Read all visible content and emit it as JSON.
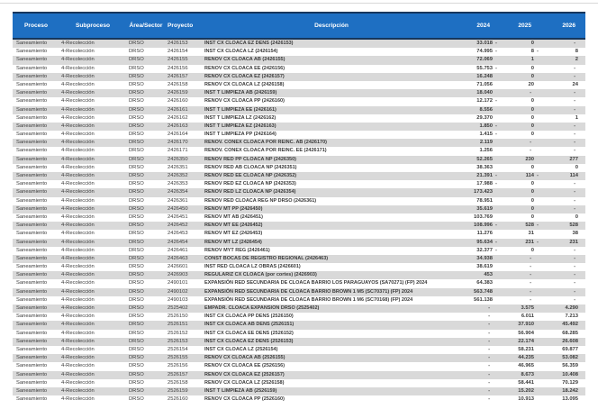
{
  "colors": {
    "header_bg": "#1E6FC2",
    "header_text": "#FFFFFF",
    "row_alt": "#D9D9D9",
    "border_dark": "#16365C",
    "body_text": "#3A3A3A"
  },
  "table": {
    "columns": [
      "Proceso",
      "Subproceso",
      "Área/Sector",
      "Proyecto",
      "Descripción",
      "2024",
      "2025",
      "2026"
    ],
    "repeated": {
      "proceso": "Saneamiento",
      "subproceso": "4-Recolección",
      "area_sector": "DRSO"
    },
    "rows": [
      [
        "2426153",
        "INST CX CLOACA EZ DENS (2426153)",
        "33.018",
        "-",
        "0",
        "",
        "-",
        ""
      ],
      [
        "2426154",
        "INST CX CLOACA LZ (2426154)",
        "74.995",
        "-",
        "8",
        "-",
        "8",
        ""
      ],
      [
        "2426155",
        "RENOV CX CLOACA AB (2426155)",
        "72.069",
        "",
        "1",
        "",
        "2",
        ""
      ],
      [
        "2426156",
        "RENOV CX CLOACA EE (2426156)",
        "55.753",
        "-",
        "0",
        "",
        "-",
        ""
      ],
      [
        "2426157",
        "RENOV CX CLOACA EZ (2426157)",
        "16.248",
        "",
        "0",
        "",
        "-",
        ""
      ],
      [
        "2426158",
        "RENOV CX CLOACA LZ (2426158)",
        "71.056",
        "",
        "20",
        "",
        "24",
        ""
      ],
      [
        "2426159",
        "INST T LIMPIEZA AB (2426159)",
        "18.040",
        "",
        "-",
        "",
        "-",
        ""
      ],
      [
        "2426160",
        "RENOV CX CLOACA PP (2426160)",
        "12.172",
        "-",
        "0",
        "",
        "-",
        ""
      ],
      [
        "2426161",
        "INST T LIMPIEZA EE (2426161)",
        "8.556",
        "",
        "0",
        "",
        "-",
        ""
      ],
      [
        "2426162",
        "INST T LIMPIEZA LZ (2426162)",
        "29.370",
        "",
        "0",
        "",
        "1",
        ""
      ],
      [
        "2426163",
        "INST T LIMPIEZA EZ (2426163)",
        "1.850",
        "-",
        "0",
        "",
        "-",
        ""
      ],
      [
        "2426164",
        "INST T LIMPIEZA PP (2426164)",
        "1.415",
        "-",
        "0",
        "",
        "-",
        ""
      ],
      [
        "2426170",
        "RENOV. CONEX CLOACA POR REINC. AB (2426170)",
        "2.119",
        "",
        "-",
        "",
        "-",
        ""
      ],
      [
        "2426171",
        "RENOV. CONEX CLOACA POR REINC. EE (2426171)",
        "1.256",
        "",
        "-",
        "",
        "-",
        ""
      ],
      [
        "2426350",
        "RENOV RED PP CLOACA NP (2426350)",
        "52.265",
        "",
        "230",
        "",
        "277",
        ""
      ],
      [
        "2426351",
        "RENOV RED AB CLOACA NP (2426351)",
        "38.363",
        "",
        "0",
        "",
        "0",
        ""
      ],
      [
        "2426352",
        "RENOV RED EE CLOACA NP (2426352)",
        "21.391",
        "-",
        "114",
        "-",
        "114",
        ""
      ],
      [
        "2426353",
        "RENOV RED EZ CLOACA NP (2426353)",
        "17.988",
        "-",
        "0",
        "",
        "-",
        ""
      ],
      [
        "2426354",
        "RENOV RED LZ CLOACA NP (2426354)",
        "173.423",
        "",
        "0",
        "",
        "-",
        ""
      ],
      [
        "2426361",
        "RENOV RED CLOACA REG NP DRSO (2426361)",
        "78.951",
        "",
        "0",
        "",
        "-",
        ""
      ],
      [
        "2426450",
        "RENOV MT PP (2426450)",
        "35.619",
        "",
        "0",
        "",
        "-",
        ""
      ],
      [
        "2426451",
        "RENOV MT AB (2426451)",
        "103.769",
        "",
        "0",
        "",
        "0",
        ""
      ],
      [
        "2426452",
        "RENOV MT EE (2426452)",
        "108.996",
        "-",
        "528",
        "-",
        "528",
        ""
      ],
      [
        "2426453",
        "RENOV MT EZ (2426453)",
        "11.276",
        "",
        "31",
        "",
        "38",
        ""
      ],
      [
        "2426454",
        "RENOV MT LZ (2426454)",
        "95.634",
        "-",
        "231",
        "-",
        "231",
        ""
      ],
      [
        "2426461",
        "RENOV MYT REG (2426461)",
        "32.377",
        "-",
        "0",
        "",
        "-",
        ""
      ],
      [
        "2426463",
        "CONST BOCAS DE REGISTRO REGIONAL (2426463)",
        "34.938",
        "",
        "-",
        "",
        "-",
        ""
      ],
      [
        "2426601",
        "INST RED CLOACA LZ OBRAS (2426601)",
        "38.619",
        "",
        "-",
        "",
        "-",
        ""
      ],
      [
        "2426903",
        "REGULARIZ CX CLOACA (por cortes) (2426903)",
        "453",
        "",
        "-",
        "",
        "-",
        ""
      ],
      [
        "2490101",
        "EXPANSIÓN RED SECUNDARIA DE CLOACA BARRIO LOS PARAGUAYOS (SA70271) (FP) 2024",
        "64.383",
        "",
        "-",
        "",
        "-",
        ""
      ],
      [
        "2490102",
        "EXPANSIÓN RED SECUNDARIA DE CLOACA BARRIO BROWN 1 M5 (SC70371) (FP) 2024",
        "563.748",
        "",
        "-",
        "",
        "-",
        ""
      ],
      [
        "2490103",
        "EXPANSIÓN RED SECUNDARIA DE CLOACA BARRIO BROWN 1 M6 (SC70168) (FP) 2024",
        "561.138",
        "",
        "-",
        "",
        "-",
        ""
      ],
      [
        "2525402",
        "EMPADR. CLOACA EXPANSION DRSO (2525402)",
        "-",
        "",
        "3.575",
        "",
        "4.290",
        ""
      ],
      [
        "2526150",
        "INST CX CLOACA PP DENS (2526150)",
        "-",
        "",
        "6.011",
        "",
        "7.213",
        ""
      ],
      [
        "2526151",
        "INST CX CLOACA AB DENS (2526151)",
        "-",
        "",
        "37.910",
        "",
        "45.492",
        ""
      ],
      [
        "2526152",
        "INST CX CLOACA EE DENS (2526152)",
        "-",
        "",
        "56.904",
        "",
        "68.285",
        ""
      ],
      [
        "2526153",
        "INST CX CLOACA EZ DENS (2526153)",
        "-",
        "",
        "22.174",
        "",
        "26.608",
        ""
      ],
      [
        "2526154",
        "INST CX CLOACA LZ (2526154)",
        "-",
        "",
        "58.231",
        "",
        "69.877",
        ""
      ],
      [
        "2526155",
        "RENOV CX CLOACA AB (2526155)",
        "-",
        "",
        "44.235",
        "",
        "53.082",
        ""
      ],
      [
        "2526156",
        "RENOV CX CLOACA EE (2526156)",
        "-",
        "",
        "46.965",
        "",
        "56.359",
        ""
      ],
      [
        "2526157",
        "RENOV CX CLOACA EZ (2526157)",
        "-",
        "",
        "8.673",
        "",
        "10.408",
        ""
      ],
      [
        "2526158",
        "RENOV CX CLOACA LZ (2526158)",
        "-",
        "",
        "58.441",
        "",
        "70.129",
        ""
      ],
      [
        "2526159",
        "INST T LIMPIEZA AB (2526159)",
        "-",
        "",
        "15.202",
        "",
        "18.242",
        ""
      ],
      [
        "2526160",
        "RENOV CX CLOACA PP (2526160)",
        "-",
        "",
        "10.913",
        "",
        "13.095",
        ""
      ]
    ]
  }
}
